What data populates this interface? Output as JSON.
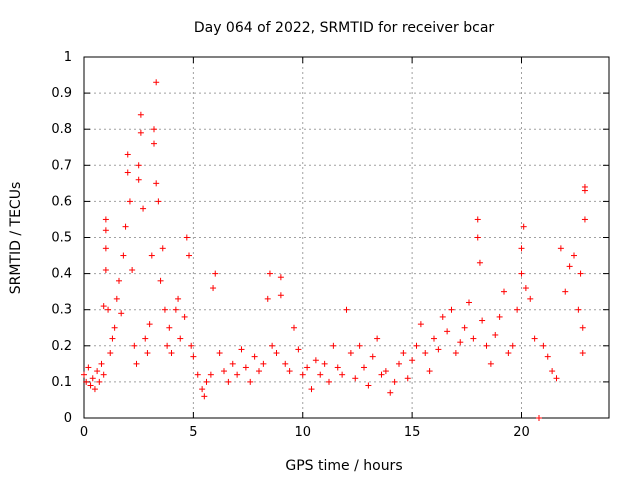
{
  "chart_data": {
    "type": "scatter",
    "title": "Day 064 of 2022, SRMTID for receiver bcar",
    "xlabel": "GPS time / hours",
    "ylabel": "SRMTID / TECUs",
    "xlim": [
      0,
      24
    ],
    "ylim": [
      0,
      1
    ],
    "xticks": [
      0,
      5,
      10,
      15,
      20
    ],
    "yticks": [
      0,
      0.1,
      0.2,
      0.3,
      0.4,
      0.5,
      0.6,
      0.7,
      0.8,
      0.9,
      1
    ],
    "xtick_labels": [
      "0",
      "5",
      "10",
      "15",
      "20"
    ],
    "ytick_labels": [
      "0",
      "0.1",
      "0.2",
      "0.3",
      "0.4",
      "0.5",
      "0.6",
      "0.7",
      "0.8",
      "0.9",
      "1"
    ],
    "grid": true,
    "marker": "plus",
    "color": "#ff0000",
    "series": [
      {
        "name": "SRMTID",
        "points": [
          [
            0.0,
            0.12
          ],
          [
            0.1,
            0.1
          ],
          [
            0.2,
            0.14
          ],
          [
            0.3,
            0.09
          ],
          [
            0.4,
            0.11
          ],
          [
            0.5,
            0.08
          ],
          [
            0.6,
            0.13
          ],
          [
            0.7,
            0.1
          ],
          [
            0.8,
            0.15
          ],
          [
            0.9,
            0.12
          ],
          [
            1.0,
            0.55
          ],
          [
            1.0,
            0.52
          ],
          [
            1.0,
            0.47
          ],
          [
            1.0,
            0.41
          ],
          [
            1.1,
            0.3
          ],
          [
            1.2,
            0.18
          ],
          [
            1.3,
            0.22
          ],
          [
            1.4,
            0.25
          ],
          [
            1.5,
            0.33
          ],
          [
            1.6,
            0.38
          ],
          [
            1.7,
            0.29
          ],
          [
            1.8,
            0.45
          ],
          [
            1.9,
            0.53
          ],
          [
            2.0,
            0.73
          ],
          [
            2.0,
            0.68
          ],
          [
            2.1,
            0.6
          ],
          [
            2.2,
            0.41
          ],
          [
            2.3,
            0.2
          ],
          [
            2.4,
            0.15
          ],
          [
            2.5,
            0.66
          ],
          [
            2.5,
            0.7
          ],
          [
            2.6,
            0.84
          ],
          [
            2.6,
            0.79
          ],
          [
            2.7,
            0.58
          ],
          [
            2.8,
            0.22
          ],
          [
            2.9,
            0.18
          ],
          [
            3.0,
            0.26
          ],
          [
            3.1,
            0.45
          ],
          [
            3.2,
            0.8
          ],
          [
            3.2,
            0.76
          ],
          [
            3.3,
            0.93
          ],
          [
            3.3,
            0.65
          ],
          [
            3.4,
            0.6
          ],
          [
            3.5,
            0.38
          ],
          [
            3.6,
            0.47
          ],
          [
            3.7,
            0.3
          ],
          [
            3.8,
            0.2
          ],
          [
            3.9,
            0.25
          ],
          [
            4.0,
            0.18
          ],
          [
            4.2,
            0.3
          ],
          [
            4.3,
            0.33
          ],
          [
            4.4,
            0.22
          ],
          [
            4.6,
            0.28
          ],
          [
            4.7,
            0.5
          ],
          [
            4.8,
            0.45
          ],
          [
            4.9,
            0.2
          ],
          [
            5.0,
            0.17
          ],
          [
            5.2,
            0.12
          ],
          [
            5.4,
            0.08
          ],
          [
            5.5,
            0.06
          ],
          [
            5.6,
            0.1
          ],
          [
            5.8,
            0.12
          ],
          [
            5.9,
            0.36
          ],
          [
            6.0,
            0.4
          ],
          [
            6.2,
            0.18
          ],
          [
            6.4,
            0.13
          ],
          [
            6.6,
            0.1
          ],
          [
            6.8,
            0.15
          ],
          [
            7.0,
            0.12
          ],
          [
            7.2,
            0.19
          ],
          [
            7.4,
            0.14
          ],
          [
            7.6,
            0.1
          ],
          [
            7.8,
            0.17
          ],
          [
            8.0,
            0.13
          ],
          [
            8.2,
            0.15
          ],
          [
            8.4,
            0.33
          ],
          [
            8.5,
            0.4
          ],
          [
            8.6,
            0.2
          ],
          [
            8.8,
            0.18
          ],
          [
            9.0,
            0.39
          ],
          [
            9.0,
            0.34
          ],
          [
            9.2,
            0.15
          ],
          [
            9.4,
            0.13
          ],
          [
            9.6,
            0.25
          ],
          [
            9.8,
            0.19
          ],
          [
            10.0,
            0.12
          ],
          [
            10.2,
            0.14
          ],
          [
            10.4,
            0.08
          ],
          [
            10.6,
            0.16
          ],
          [
            10.8,
            0.12
          ],
          [
            11.0,
            0.15
          ],
          [
            11.2,
            0.1
          ],
          [
            11.4,
            0.2
          ],
          [
            11.6,
            0.14
          ],
          [
            11.8,
            0.12
          ],
          [
            12.0,
            0.3
          ],
          [
            12.2,
            0.18
          ],
          [
            12.4,
            0.11
          ],
          [
            12.6,
            0.2
          ],
          [
            12.8,
            0.14
          ],
          [
            13.0,
            0.09
          ],
          [
            13.2,
            0.17
          ],
          [
            13.4,
            0.22
          ],
          [
            13.6,
            0.12
          ],
          [
            13.8,
            0.13
          ],
          [
            14.0,
            0.07
          ],
          [
            14.2,
            0.1
          ],
          [
            14.4,
            0.15
          ],
          [
            14.6,
            0.18
          ],
          [
            14.8,
            0.11
          ],
          [
            15.0,
            0.16
          ],
          [
            15.2,
            0.2
          ],
          [
            15.4,
            0.26
          ],
          [
            15.6,
            0.18
          ],
          [
            15.8,
            0.13
          ],
          [
            16.0,
            0.22
          ],
          [
            16.2,
            0.19
          ],
          [
            16.4,
            0.28
          ],
          [
            16.6,
            0.24
          ],
          [
            16.8,
            0.3
          ],
          [
            17.0,
            0.18
          ],
          [
            17.2,
            0.21
          ],
          [
            17.4,
            0.25
          ],
          [
            17.6,
            0.32
          ],
          [
            17.8,
            0.22
          ],
          [
            18.0,
            0.55
          ],
          [
            18.0,
            0.5
          ],
          [
            18.1,
            0.43
          ],
          [
            18.2,
            0.27
          ],
          [
            18.4,
            0.2
          ],
          [
            18.6,
            0.15
          ],
          [
            18.8,
            0.23
          ],
          [
            19.0,
            0.28
          ],
          [
            19.2,
            0.35
          ],
          [
            19.4,
            0.18
          ],
          [
            19.6,
            0.2
          ],
          [
            19.8,
            0.3
          ],
          [
            20.0,
            0.4
          ],
          [
            20.0,
            0.47
          ],
          [
            20.1,
            0.53
          ],
          [
            20.2,
            0.36
          ],
          [
            20.4,
            0.33
          ],
          [
            20.6,
            0.22
          ],
          [
            20.8,
            0.0
          ],
          [
            21.0,
            0.2
          ],
          [
            21.2,
            0.17
          ],
          [
            21.4,
            0.13
          ],
          [
            21.6,
            0.11
          ],
          [
            21.8,
            0.47
          ],
          [
            22.0,
            0.35
          ],
          [
            22.2,
            0.42
          ],
          [
            22.4,
            0.45
          ],
          [
            22.6,
            0.3
          ],
          [
            22.7,
            0.4
          ],
          [
            22.8,
            0.25
          ],
          [
            22.8,
            0.18
          ],
          [
            22.9,
            0.55
          ],
          [
            22.9,
            0.63
          ],
          [
            22.9,
            0.64
          ],
          [
            0.9,
            0.31
          ]
        ]
      }
    ]
  }
}
